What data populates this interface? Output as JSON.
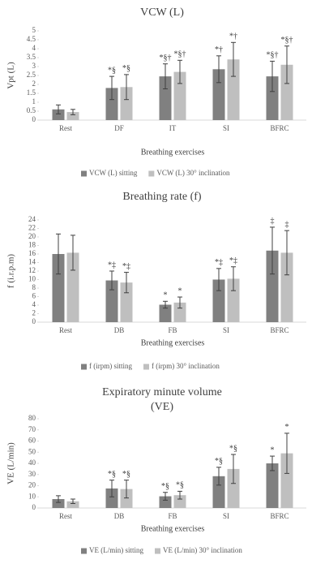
{
  "chart_data": [
    {
      "type": "bar",
      "title": "VCW (L)",
      "y_label": "Vpt (L)",
      "x_label": "Breathing exercises",
      "categories": [
        "Rest",
        "DF",
        "IT",
        "SI",
        "BFRC"
      ],
      "ylim": [
        0,
        5
      ],
      "yticks": [
        0,
        0.5,
        1,
        1.5,
        2,
        2.5,
        3,
        3.5,
        4,
        4.5,
        5
      ],
      "series": [
        {
          "name": "VCW (L) sitting",
          "color": "#808080",
          "values": [
            0.6,
            1.8,
            2.45,
            2.85,
            2.45
          ],
          "errors": [
            0.25,
            0.65,
            0.7,
            0.75,
            0.85
          ],
          "annotations": [
            null,
            "*§",
            "*§†",
            "*†",
            "*§†"
          ]
        },
        {
          "name": "VCW (L) 30° inclination",
          "color": "#bfbfbf",
          "values": [
            0.45,
            1.85,
            2.7,
            3.4,
            3.1
          ],
          "errors": [
            0.15,
            0.7,
            0.65,
            0.95,
            1.05
          ],
          "annotations": [
            null,
            "*§",
            "*§†",
            "*†",
            "*§†"
          ]
        }
      ]
    },
    {
      "type": "bar",
      "title": "Breathing rate (f)",
      "y_label": "f (i.r.p.m)",
      "x_label": "Breathing exercises",
      "categories": [
        "Rest",
        "DB",
        "FB",
        "SI",
        "BFRC"
      ],
      "ylim": [
        0,
        24
      ],
      "yticks": [
        0,
        2,
        4,
        6,
        8,
        10,
        12,
        14,
        16,
        18,
        20,
        22,
        24
      ],
      "series": [
        {
          "name": "f (irpm) sitting",
          "color": "#808080",
          "values": [
            16,
            9.8,
            4.1,
            10,
            16.8
          ],
          "errors": [
            4.7,
            2.2,
            0.8,
            2.6,
            5.5
          ],
          "annotations": [
            null,
            "*‡",
            "*",
            "*‡",
            "‡"
          ]
        },
        {
          "name": "f (irpm) 30° inclination",
          "color": "#bfbfbf",
          "values": [
            16.3,
            9.3,
            4.6,
            10.2,
            16.3
          ],
          "errors": [
            4.1,
            2.4,
            1.3,
            2.8,
            5.2
          ],
          "annotations": [
            null,
            "*‡",
            "*",
            "*‡",
            "‡"
          ]
        }
      ]
    },
    {
      "type": "bar",
      "title": "Expiratory minute volume",
      "subtitle": "(VE)",
      "y_label": "VE (L/min)",
      "x_label": "Breathing exercises",
      "categories": [
        "Rest",
        "DB",
        "FB",
        "SI",
        "BFRC"
      ],
      "ylim": [
        0,
        80
      ],
      "yticks": [
        0,
        10,
        20,
        30,
        40,
        50,
        60,
        70,
        80
      ],
      "series": [
        {
          "name": "VE (L/min) sitting",
          "color": "#808080",
          "values": [
            8,
            17.5,
            10.5,
            28.5,
            40
          ],
          "errors": [
            3,
            7.5,
            3.5,
            8,
            6.5
          ],
          "annotations": [
            null,
            "*§",
            "*§",
            "*§",
            "*"
          ]
        },
        {
          "name": "VE (L/min) 30° inclination",
          "color": "#bfbfbf",
          "values": [
            6,
            17,
            11.5,
            35,
            49
          ],
          "errors": [
            2,
            8,
            3.5,
            13,
            18
          ],
          "annotations": [
            null,
            "*§",
            "*§",
            "*§",
            "*"
          ]
        }
      ]
    }
  ]
}
